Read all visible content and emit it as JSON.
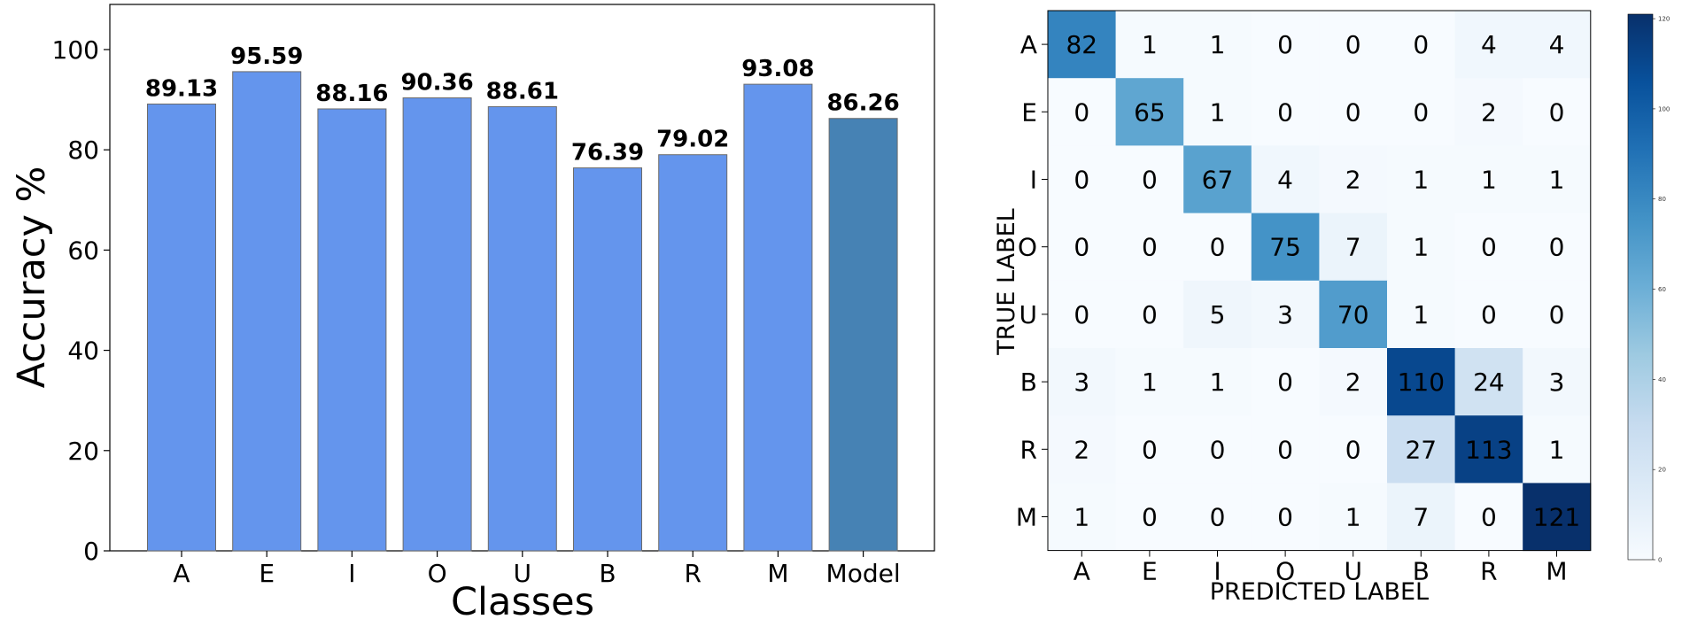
{
  "chart_data": [
    {
      "type": "bar",
      "categories": [
        "A",
        "E",
        "I",
        "O",
        "U",
        "B",
        "R",
        "M",
        "Model"
      ],
      "values": [
        89.13,
        95.59,
        88.16,
        90.36,
        88.61,
        76.39,
        79.02,
        93.08,
        86.26
      ],
      "value_labels": [
        "89.13",
        "95.59",
        "88.16",
        "90.36",
        "88.61",
        "76.39",
        "79.02",
        "93.08",
        "86.26"
      ],
      "colors": [
        "#6495ED",
        "#6495ED",
        "#6495ED",
        "#6495ED",
        "#6495ED",
        "#6495ED",
        "#6495ED",
        "#6495ED",
        "#4682B4"
      ],
      "xlabel": "Classes",
      "ylabel": "Accuracy %",
      "ylim": [
        0,
        109
      ],
      "yticks": [
        "0",
        "20",
        "40",
        "60",
        "80",
        "100"
      ],
      "grid": false
    },
    {
      "type": "heatmap",
      "xlabel": "PREDICTED LABEL",
      "ylabel": "TRUE LABEL",
      "x_labels": [
        "A",
        "E",
        "I",
        "O",
        "U",
        "B",
        "R",
        "M"
      ],
      "y_labels": [
        "A",
        "E",
        "I",
        "O",
        "U",
        "B",
        "R",
        "M"
      ],
      "matrix": [
        [
          82,
          1,
          1,
          0,
          0,
          0,
          4,
          4
        ],
        [
          0,
          65,
          1,
          0,
          0,
          0,
          2,
          0
        ],
        [
          0,
          0,
          67,
          4,
          2,
          1,
          1,
          1
        ],
        [
          0,
          0,
          0,
          75,
          7,
          1,
          0,
          0
        ],
        [
          0,
          0,
          5,
          3,
          70,
          1,
          0,
          0
        ],
        [
          3,
          1,
          1,
          0,
          2,
          110,
          24,
          3
        ],
        [
          2,
          0,
          0,
          0,
          0,
          27,
          113,
          1
        ],
        [
          1,
          0,
          0,
          0,
          1,
          7,
          0,
          121
        ]
      ],
      "colormap": "Blues",
      "colorbar_range": [
        0,
        121
      ],
      "colorbar_ticks": [
        "0",
        "20",
        "40",
        "60",
        "80",
        "100",
        "120"
      ]
    }
  ]
}
